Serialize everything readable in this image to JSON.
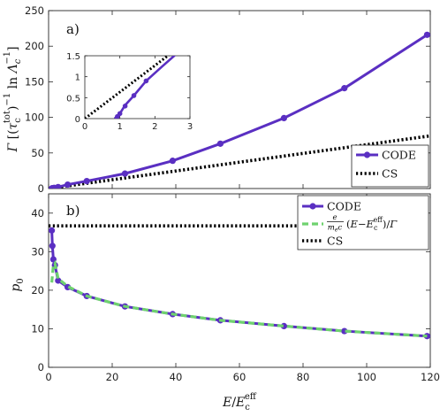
{
  "chart_data": [
    {
      "panel": "a)",
      "type": "line",
      "ylabel": "Γ [(τ_c^tot)^-1 ln Λ_c^-1]",
      "xlim": [
        0,
        120
      ],
      "ylim": [
        0,
        250
      ],
      "xticks": [
        0,
        20,
        40,
        60,
        80,
        100,
        120
      ],
      "yticks": [
        0,
        50,
        100,
        150,
        200,
        250
      ],
      "legend_position": "bottom-right",
      "series": [
        {
          "name": "CODE",
          "style": "solid line with circle markers",
          "color": "#5a2fc2",
          "x": [
            1,
            1.15,
            1.4,
            1.75,
            3,
            6,
            12,
            24,
            39,
            54,
            74,
            93,
            119
          ],
          "y": [
            0.12,
            0.32,
            0.55,
            0.9,
            2.1,
            5.5,
            10.5,
            21,
            39,
            63,
            99,
            141,
            216
          ]
        },
        {
          "name": "CS",
          "style": "dotted line",
          "color": "#000000",
          "x": [
            0,
            120
          ],
          "y": [
            0,
            74
          ]
        }
      ],
      "inset": {
        "xlim": [
          0,
          3
        ],
        "ylim": [
          0,
          1.5
        ],
        "xticks": [
          0,
          1,
          2,
          3
        ],
        "yticks": [
          0,
          0.5,
          1,
          1.5
        ],
        "series": [
          {
            "name": "CODE",
            "color": "#5a2fc2",
            "line_x": [
              0.85,
              1.0,
              1.15,
              1.4,
              1.75,
              2.2,
              3.0
            ],
            "line_y": [
              0.0,
              0.12,
              0.32,
              0.55,
              0.9,
              1.24,
              1.83
            ],
            "marker_x": [
              0.93,
              1.0,
              1.15,
              1.4,
              1.75
            ],
            "marker_y": [
              0.05,
              0.12,
              0.3,
              0.55,
              0.9
            ]
          },
          {
            "name": "CS",
            "color": "#000000",
            "x": [
              0,
              3
            ],
            "y": [
              0,
              1.9
            ]
          }
        ]
      }
    },
    {
      "panel": "b)",
      "type": "line",
      "ylabel": "p_0",
      "xlabel": "E/E_c^eff",
      "xlim": [
        0,
        120
      ],
      "ylim": [
        0,
        45
      ],
      "xticks": [
        0,
        20,
        40,
        60,
        80,
        100,
        120
      ],
      "yticks": [
        0,
        10,
        20,
        30,
        40
      ],
      "legend_position": "top-right",
      "series": [
        {
          "name": "CODE",
          "style": "solid line with circle markers",
          "color": "#5a2fc2",
          "x": [
            1,
            1.2,
            1.5,
            2,
            3,
            6,
            12,
            24,
            39,
            54,
            74,
            93,
            119
          ],
          "y": [
            35.5,
            31.5,
            28,
            26.5,
            22.5,
            20.8,
            18.5,
            15.8,
            13.8,
            12.2,
            10.7,
            9.4,
            8.1
          ]
        },
        {
          "name": "e/(m_e c) (E − E_c^eff)/Γ",
          "style": "dashed line",
          "color": "#6fd26f",
          "x": [
            1,
            1.5,
            2,
            3,
            6,
            12,
            24,
            39,
            54,
            74,
            93,
            119
          ],
          "y": [
            22,
            26.5,
            27,
            23,
            21,
            18.5,
            15.8,
            13.8,
            12.2,
            10.7,
            9.4,
            8.1
          ]
        },
        {
          "name": "CS",
          "style": "dotted line",
          "color": "#000000",
          "x": [
            0,
            120
          ],
          "y": [
            36.7,
            36.7
          ]
        }
      ]
    }
  ]
}
